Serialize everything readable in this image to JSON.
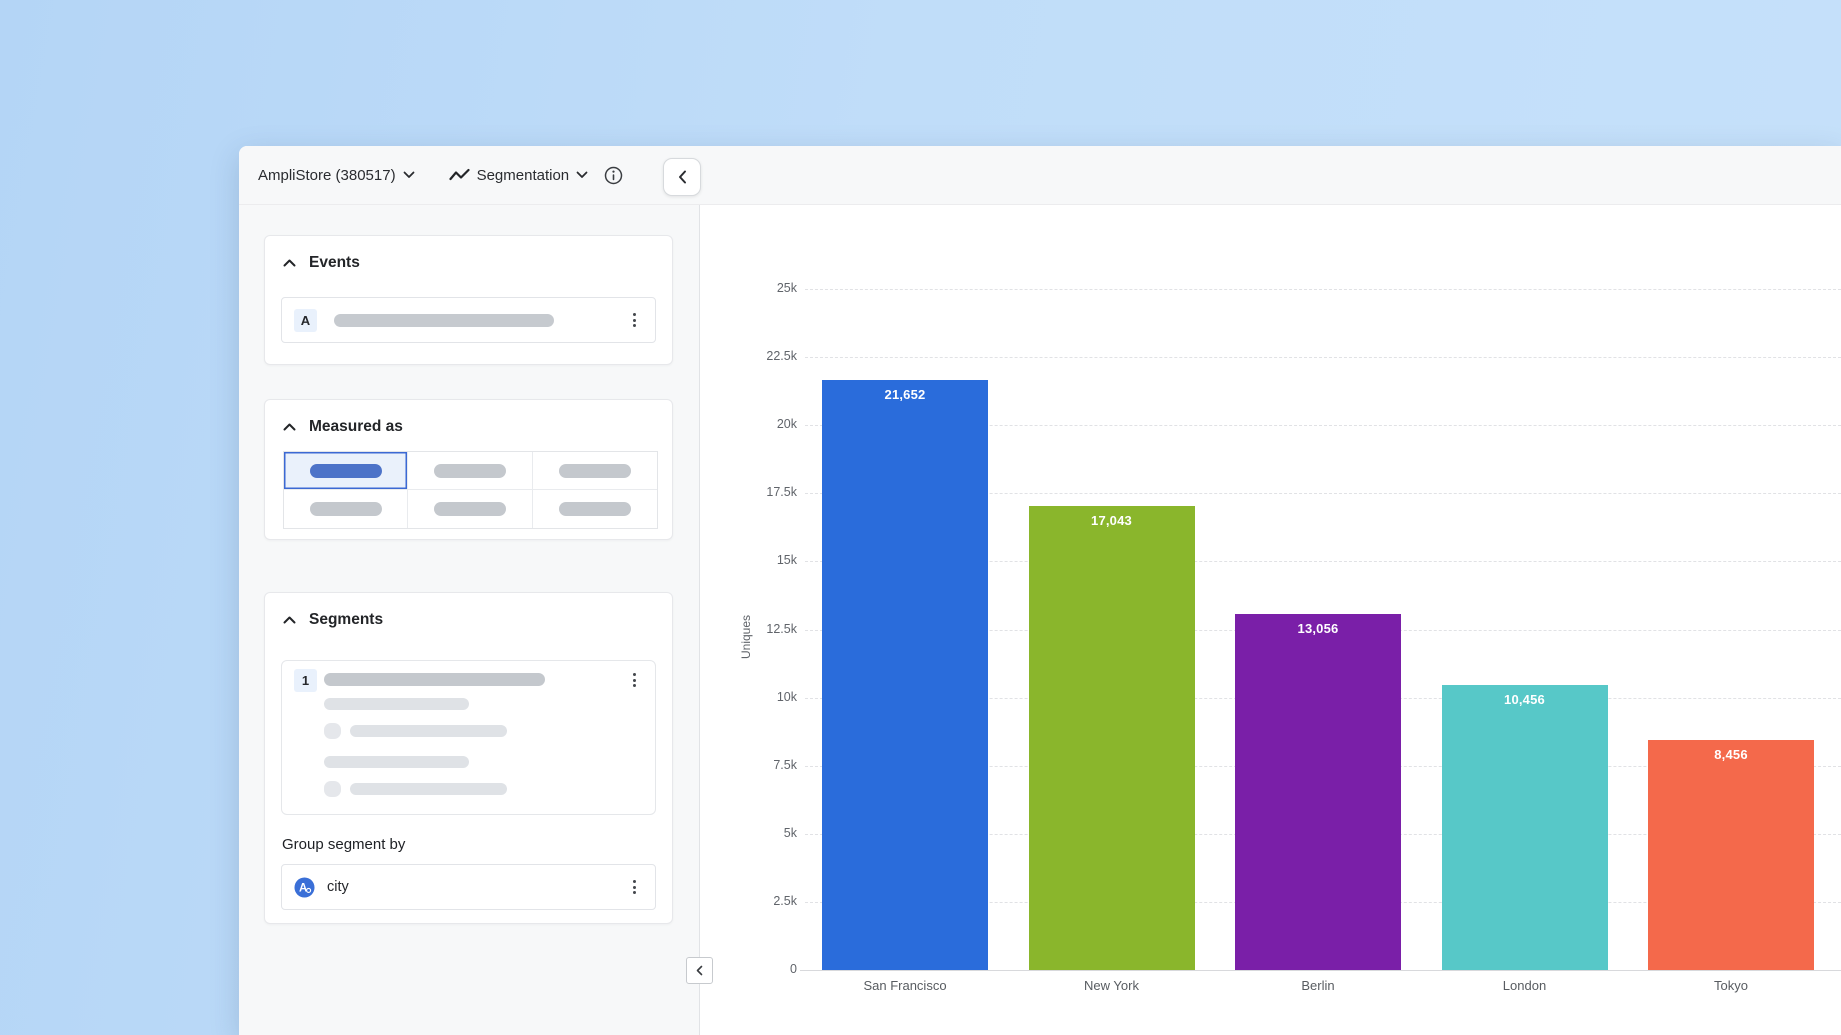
{
  "header": {
    "project_label": "AmpliStore (380517)",
    "report_type": "Segmentation"
  },
  "sidebar": {
    "events": {
      "title": "Events",
      "badge": "A"
    },
    "measured": {
      "title": "Measured as"
    },
    "segments": {
      "title": "Segments",
      "badge": "1",
      "group_label": "Group segment by",
      "group_value": "city"
    }
  },
  "icons": {
    "project_dropdown": "chevron-down",
    "report_type": "line-chart-zigzag",
    "report_dropdown": "chevron-down",
    "info": "info-circle",
    "panel_toggle": "chevron-up",
    "row_menu": "kebab-vertical",
    "sidebar_collapse": "chevron-left",
    "group_property": "letter-a-in-blue-circle"
  },
  "colors": {
    "page_background": "#c0ddf9",
    "surface": "#f7f8f9",
    "selected_fill": "#eaf1fb",
    "selected_border": "#3c69d3",
    "selected_pill": "#4d73c8"
  },
  "chart_data": {
    "type": "bar",
    "title": "",
    "xlabel": "",
    "ylabel": "Uniques",
    "categories": [
      "San Francisco",
      "New York",
      "Berlin",
      "London",
      "Tokyo"
    ],
    "values": [
      21652,
      17043,
      13056,
      10456,
      8456
    ],
    "value_labels": [
      "21,652",
      "17,043",
      "13,056",
      "10,456",
      "8,456"
    ],
    "bar_colors": [
      "#2a6cdb",
      "#8ab62c",
      "#7a1fa8",
      "#57c8c8",
      "#f4694b"
    ],
    "ylim": [
      0,
      25000
    ],
    "yticks": [
      {
        "v": 25000,
        "label": "25k"
      },
      {
        "v": 22500,
        "label": "22.5k"
      },
      {
        "v": 20000,
        "label": "20k"
      },
      {
        "v": 17500,
        "label": "17.5k"
      },
      {
        "v": 15000,
        "label": "15k"
      },
      {
        "v": 12500,
        "label": "12.5k"
      },
      {
        "v": 10000,
        "label": "10k"
      },
      {
        "v": 7500,
        "label": "7.5k"
      },
      {
        "v": 5000,
        "label": "5k"
      },
      {
        "v": 2500,
        "label": "2.5k"
      },
      {
        "v": 0,
        "label": "0"
      }
    ],
    "grid": "horizontal-dashed",
    "legend": "none"
  }
}
